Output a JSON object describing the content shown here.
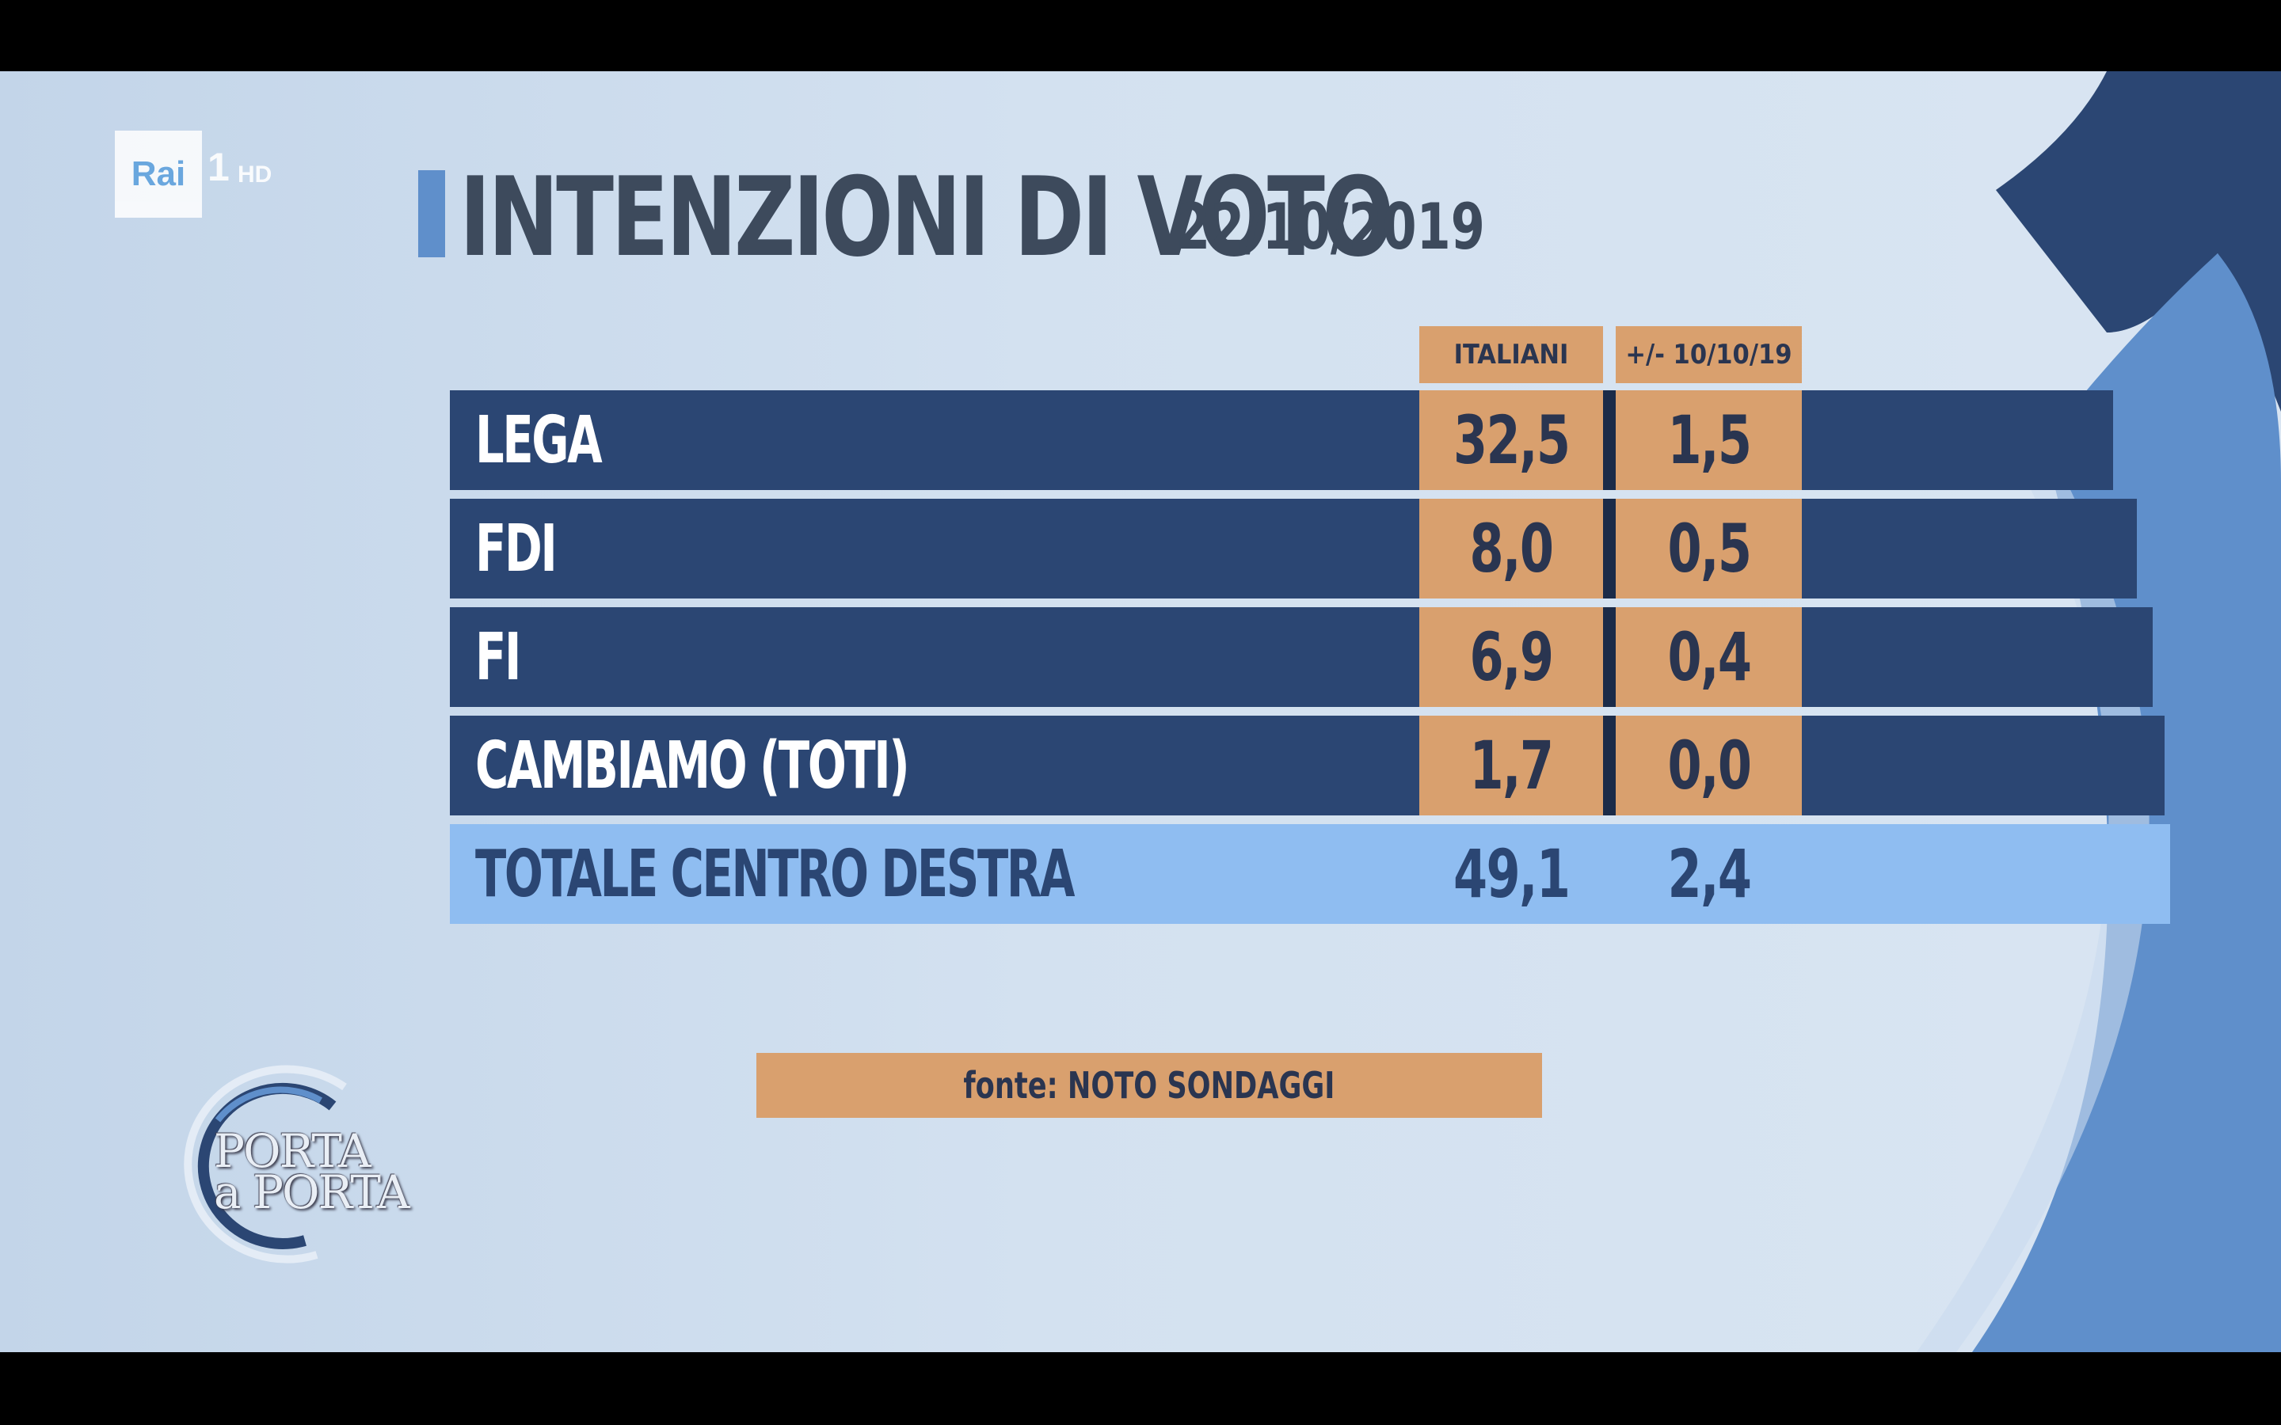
{
  "channel": {
    "logo_text": "Rai",
    "number": "1",
    "hd": "HD"
  },
  "title": "INTENZIONI DI VOTO",
  "date": "22/10/2019",
  "columns": {
    "italiani": "ITALIANI",
    "delta": "+/- 10/10/19"
  },
  "rows": [
    {
      "label": "LEGA",
      "italiani": "32,5",
      "delta": "1,5"
    },
    {
      "label": "FDI",
      "italiani": "8,0",
      "delta": "0,5"
    },
    {
      "label": "FI",
      "italiani": "6,9",
      "delta": "0,4"
    },
    {
      "label": "CAMBIAMO (TOTI)",
      "italiani": "1,7",
      "delta": "0,0"
    }
  ],
  "total": {
    "label": "TOTALE CENTRO DESTRA",
    "italiani": "49,1",
    "delta": "2,4"
  },
  "source": "fonte: NOTO SONDAGGI",
  "show_logo": {
    "line1": "PORTA",
    "line2": "a PORTA"
  },
  "colors": {
    "row_bg": "#2b4673",
    "cell_bg": "#d9a06e",
    "total_bg": "#8fbdf1",
    "title_text": "#3d4a5c"
  },
  "chart_data": {
    "type": "table",
    "title": "INTENZIONI DI VOTO",
    "subtitle": "22/10/2019",
    "columns": [
      "ITALIANI",
      "+/- 10/10/19"
    ],
    "categories": [
      "LEGA",
      "FDI",
      "FI",
      "CAMBIAMO (TOTI)",
      "TOTALE CENTRO DESTRA"
    ],
    "series": [
      {
        "name": "ITALIANI",
        "values": [
          32.5,
          8.0,
          6.9,
          1.7,
          49.1
        ]
      },
      {
        "name": "+/- 10/10/19",
        "values": [
          1.5,
          0.5,
          0.4,
          0.0,
          2.4
        ]
      }
    ]
  }
}
